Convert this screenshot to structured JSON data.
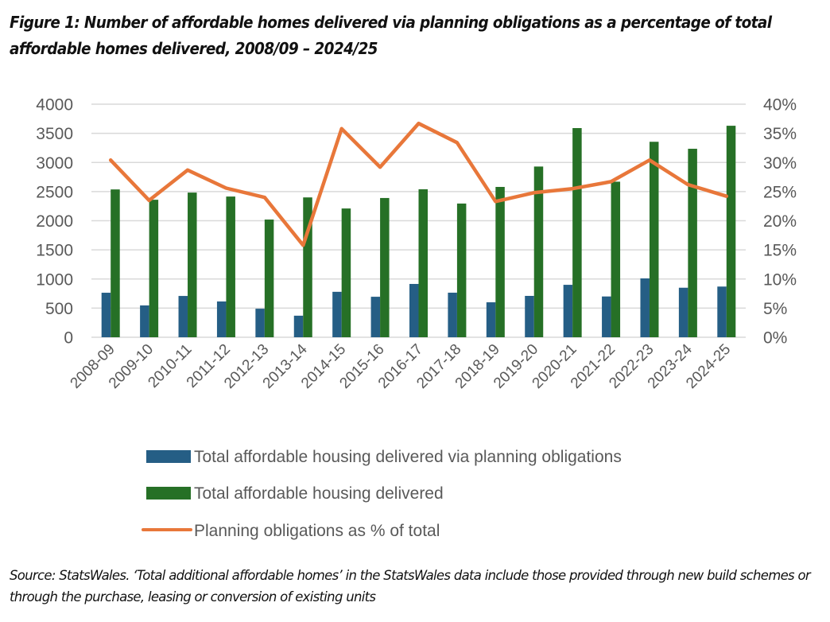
{
  "figure": {
    "title": "Figure 1: Number of affordable homes delivered via planning obligations as a percentage of total affordable homes delivered, 2008/09 – 2024/25",
    "source": "Source: StatsWales. ‘Total additional affordable homes’ in the StatsWales data include those provided through new build schemes or through the purchase, leasing or conversion of existing units"
  },
  "chart_data": {
    "type": "bar",
    "title": "Figure 1: Number of affordable homes delivered via planning obligations as a percentage of total affordable homes delivered, 2008/09 – 2024/25",
    "xlabel": "",
    "ylabel": "",
    "y2label": "",
    "categories": [
      "2008-09",
      "2009-10",
      "2010-11",
      "2011-12",
      "2012-13",
      "2013-14",
      "2014-15",
      "2015-16",
      "2016-17",
      "2017-18",
      "2018-19",
      "2019-20",
      "2020-21",
      "2021-22",
      "2022-23",
      "2023-24",
      "2024-25"
    ],
    "ylim": [
      0,
      4000
    ],
    "y2lim": [
      0,
      40
    ],
    "yticks": [
      "0",
      "500",
      "1000",
      "1500",
      "2000",
      "2500",
      "3000",
      "3500",
      "4000"
    ],
    "y2ticks": [
      "0%",
      "5%",
      "10%",
      "15%",
      "20%",
      "25%",
      "30%",
      "35%",
      "40%"
    ],
    "grid": true,
    "legend_position": "bottom",
    "series": [
      {
        "name": "Total affordable housing delivered via planning obligations",
        "type": "bar",
        "axis": "left",
        "color": "#255E85",
        "values": [
          764,
          546,
          709,
          614,
          490,
          370,
          780,
          695,
          915,
          765,
          600,
          710,
          900,
          700,
          1010,
          850,
          870
        ]
      },
      {
        "name": "Total affordable housing delivered",
        "type": "bar",
        "axis": "left",
        "color": "#267026",
        "values": [
          2537,
          2360,
          2483,
          2415,
          2020,
          2400,
          2210,
          2390,
          2540,
          2295,
          2580,
          2930,
          3590,
          2670,
          3355,
          3235,
          3630
        ]
      },
      {
        "name": "Planning obligations as % of total",
        "type": "line",
        "axis": "right",
        "color": "#E8773A",
        "values": [
          30.4,
          23.5,
          28.7,
          25.6,
          24.0,
          15.8,
          35.8,
          29.2,
          36.7,
          33.4,
          23.3,
          24.8,
          25.5,
          26.7,
          30.4,
          26.2,
          24.2
        ]
      }
    ]
  }
}
